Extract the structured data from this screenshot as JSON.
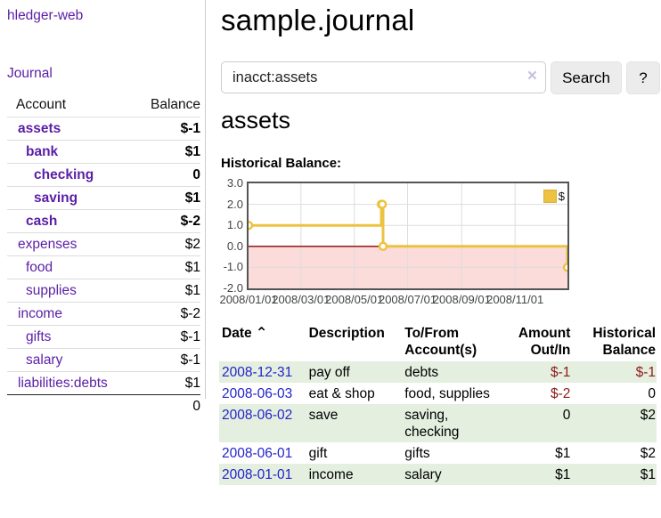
{
  "app": {
    "brand": "hledger-web"
  },
  "sidebar": {
    "journal_link": "Journal",
    "accounts_table": {
      "account_header": "Account",
      "balance_header": "Balance",
      "rows": [
        {
          "account": "assets",
          "balance": "$-1"
        },
        {
          "account": "bank",
          "balance": "$1"
        },
        {
          "account": "checking",
          "balance": "0"
        },
        {
          "account": "saving",
          "balance": "$1"
        },
        {
          "account": "cash",
          "balance": "$-2"
        },
        {
          "account": "expenses",
          "balance": "$2"
        },
        {
          "account": "food",
          "balance": "$1"
        },
        {
          "account": "supplies",
          "balance": "$1"
        },
        {
          "account": "income",
          "balance": "$-2"
        },
        {
          "account": "gifts",
          "balance": "$-1"
        },
        {
          "account": "salary",
          "balance": "$-1"
        },
        {
          "account": "liabilities:debts",
          "balance": "$1"
        }
      ],
      "total": "0"
    }
  },
  "main": {
    "title": "sample.journal",
    "search": {
      "value": "inacct:assets",
      "clear_icon": "×",
      "search_button": "Search",
      "help_button": "?"
    },
    "account_heading": "assets",
    "chart_title": "Historical Balance:",
    "register": {
      "headers": {
        "date": "Date",
        "sort_icon": "⌃",
        "description": "Description",
        "accounts": "To/From Account(s)",
        "amount": "Amount Out/In",
        "balance": "Historical Balance"
      },
      "rows": [
        {
          "date": "2008-12-31",
          "description": "pay off",
          "accounts": "debts",
          "amount": "$-1",
          "balance": "$-1"
        },
        {
          "date": "2008-06-03",
          "description": "eat & shop",
          "accounts": "food, supplies",
          "amount": "$-2",
          "balance": "0"
        },
        {
          "date": "2008-06-02",
          "description": "save",
          "accounts": "saving, checking",
          "amount": "0",
          "balance": "$2"
        },
        {
          "date": "2008-06-01",
          "description": "gift",
          "accounts": "gifts",
          "amount": "$1",
          "balance": "$2"
        },
        {
          "date": "2008-01-01",
          "description": "income",
          "accounts": "salary",
          "amount": "$1",
          "balance": "$1"
        }
      ]
    }
  },
  "colors": {
    "link_purple": "#5a1ea6",
    "link_blue": "#2a28d8",
    "date_link_blue": "#2323cc",
    "negative_strong": "#8f1b1b",
    "negative_soft": "#b86a6e",
    "row_green": "#e4efe0",
    "series_gold": "#edc240",
    "negative_region_pink": "#fbdcda",
    "zero_line_red": "#8b0000"
  },
  "chart_data": {
    "type": "line",
    "title": "Historical Balance",
    "legend_position": "top-right",
    "grid": true,
    "steps": true,
    "xlim": [
      "2008-01-01",
      "2008-12-31"
    ],
    "ylim": [
      -2,
      3
    ],
    "yticks": [
      3.0,
      2.0,
      1.0,
      0.0,
      -1.0,
      -2.0
    ],
    "xticks": [
      "2008/01/01",
      "2008/03/01",
      "2008/05/01",
      "2008/07/01",
      "2008/09/01",
      "2008/11/01"
    ],
    "series": [
      {
        "name": "$",
        "color": "#edc240",
        "points": [
          [
            "2008-01-01",
            1
          ],
          [
            "2008-06-01",
            2
          ],
          [
            "2008-06-02",
            2
          ],
          [
            "2008-06-03",
            0
          ],
          [
            "2008-12-31",
            -1
          ]
        ]
      }
    ],
    "zero_line_color": "#8b0000",
    "negative_region_color": "#fbdcda",
    "gridline_color": "#dddddd",
    "axis_border_color": "#545454"
  }
}
